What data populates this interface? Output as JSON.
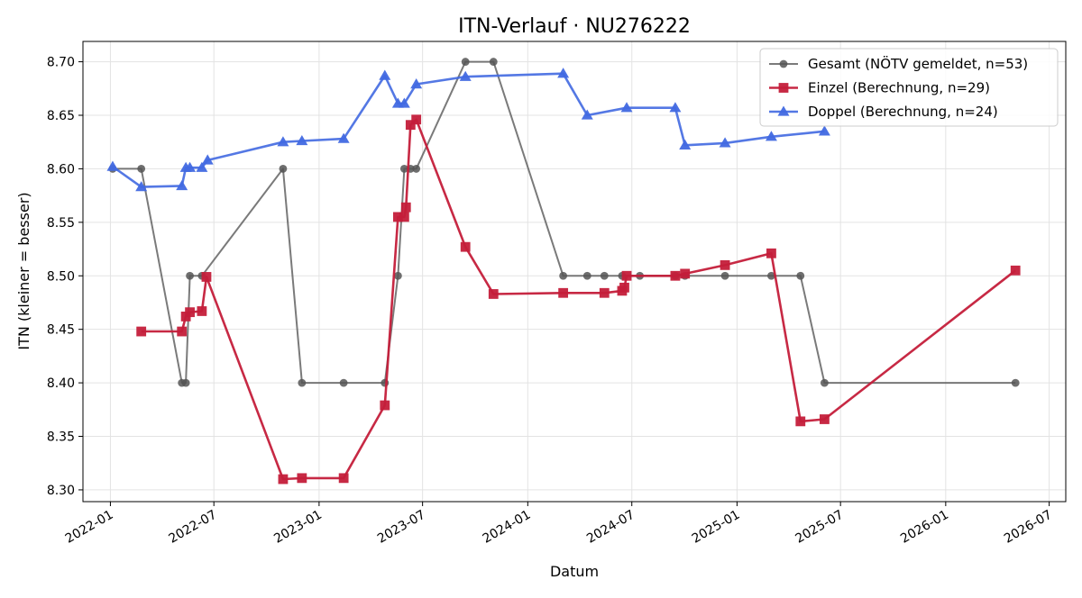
{
  "chart_data": {
    "type": "line",
    "title": "ITN-Verlauf · NU276222",
    "xlabel": "Datum",
    "ylabel": "ITN  (kleiner = besser)",
    "x_type": "date",
    "xlim": [
      "2021-11-14",
      "2026-07-30"
    ],
    "ylim": [
      8.289,
      8.719
    ],
    "grid": true,
    "legend_position": "top-right",
    "x_ticks": [
      "2022-01-01",
      "2022-07-01",
      "2023-01-01",
      "2023-07-01",
      "2024-01-01",
      "2024-07-01",
      "2025-01-01",
      "2025-07-01",
      "2026-01-01",
      "2026-07-01"
    ],
    "x_tick_labels": [
      "2022-01",
      "2022-07",
      "2023-01",
      "2023-07",
      "2024-01",
      "2024-07",
      "2025-01",
      "2025-07",
      "2026-01",
      "2026-07"
    ],
    "y_ticks": [
      8.3,
      8.35,
      8.4,
      8.45,
      8.5,
      8.55,
      8.6,
      8.65,
      8.7
    ],
    "y_tick_labels": [
      "8.30",
      "8.35",
      "8.40",
      "8.45",
      "8.50",
      "8.55",
      "8.60",
      "8.65",
      "8.70"
    ],
    "series": [
      {
        "name": "Gesamt (NÖTV gemeldet, n=53)",
        "color": "#555555",
        "marker": "circle",
        "points": [
          [
            "2022-01-05",
            8.6
          ],
          [
            "2022-02-24",
            8.6
          ],
          [
            "2022-05-06",
            8.4
          ],
          [
            "2022-05-13",
            8.4
          ],
          [
            "2022-05-20",
            8.5
          ],
          [
            "2022-06-10",
            8.5
          ],
          [
            "2022-10-30",
            8.6
          ],
          [
            "2022-12-02",
            8.4
          ],
          [
            "2023-02-13",
            8.4
          ],
          [
            "2023-04-26",
            8.4
          ],
          [
            "2023-05-19",
            8.5
          ],
          [
            "2023-05-30",
            8.6
          ],
          [
            "2023-06-10",
            8.6
          ],
          [
            "2023-06-20",
            8.6
          ],
          [
            "2023-09-14",
            8.7
          ],
          [
            "2023-11-02",
            8.7
          ],
          [
            "2024-03-03",
            8.5
          ],
          [
            "2024-04-14",
            8.5
          ],
          [
            "2024-05-14",
            8.5
          ],
          [
            "2024-06-14",
            8.5
          ],
          [
            "2024-07-15",
            8.5
          ],
          [
            "2024-09-15",
            8.5
          ],
          [
            "2024-10-02",
            8.5
          ],
          [
            "2024-12-11",
            8.5
          ],
          [
            "2025-03-02",
            8.5
          ],
          [
            "2025-04-22",
            8.5
          ],
          [
            "2025-06-03",
            8.4
          ],
          [
            "2026-05-03",
            8.4
          ]
        ]
      },
      {
        "name": "Einzel (Berechnung, n=29)",
        "color": "#c41e3a",
        "marker": "square",
        "points": [
          [
            "2022-02-24",
            8.448
          ],
          [
            "2022-05-06",
            8.448
          ],
          [
            "2022-05-13",
            8.462
          ],
          [
            "2022-05-20",
            8.466
          ],
          [
            "2022-06-10",
            8.467
          ],
          [
            "2022-06-18",
            8.499
          ],
          [
            "2022-10-30",
            8.31
          ],
          [
            "2022-12-02",
            8.311
          ],
          [
            "2023-02-13",
            8.311
          ],
          [
            "2023-04-26",
            8.379
          ],
          [
            "2023-05-19",
            8.555
          ],
          [
            "2023-05-30",
            8.555
          ],
          [
            "2023-06-02",
            8.564
          ],
          [
            "2023-06-10",
            8.641
          ],
          [
            "2023-06-20",
            8.646
          ],
          [
            "2023-09-14",
            8.527
          ],
          [
            "2023-11-02",
            8.483
          ],
          [
            "2024-03-03",
            8.484
          ],
          [
            "2024-05-14",
            8.484
          ],
          [
            "2024-06-14",
            8.486
          ],
          [
            "2024-06-18",
            8.489
          ],
          [
            "2024-06-22",
            8.5
          ],
          [
            "2024-09-15",
            8.5
          ],
          [
            "2024-10-02",
            8.502
          ],
          [
            "2024-12-11",
            8.51
          ],
          [
            "2025-03-02",
            8.521
          ],
          [
            "2025-04-22",
            8.364
          ],
          [
            "2025-06-03",
            8.366
          ],
          [
            "2026-05-03",
            8.505
          ]
        ]
      },
      {
        "name": "Doppel (Berechnung, n=24)",
        "color": "#4169e1",
        "marker": "triangle",
        "points": [
          [
            "2022-01-05",
            8.602
          ],
          [
            "2022-02-24",
            8.583
          ],
          [
            "2022-05-06",
            8.584
          ],
          [
            "2022-05-13",
            8.601
          ],
          [
            "2022-05-20",
            8.601
          ],
          [
            "2022-06-10",
            8.601
          ],
          [
            "2022-06-20",
            8.608
          ],
          [
            "2022-10-30",
            8.625
          ],
          [
            "2022-12-02",
            8.626
          ],
          [
            "2023-02-13",
            8.628
          ],
          [
            "2023-04-26",
            8.687
          ],
          [
            "2023-05-19",
            8.661
          ],
          [
            "2023-05-30",
            8.661
          ],
          [
            "2023-06-20",
            8.679
          ],
          [
            "2023-09-14",
            8.686
          ],
          [
            "2024-03-03",
            8.689
          ],
          [
            "2024-04-14",
            8.65
          ],
          [
            "2024-06-22",
            8.657
          ],
          [
            "2024-09-15",
            8.657
          ],
          [
            "2024-10-02",
            8.622
          ],
          [
            "2024-12-11",
            8.624
          ],
          [
            "2025-03-02",
            8.63
          ],
          [
            "2025-06-03",
            8.635
          ]
        ]
      }
    ]
  }
}
